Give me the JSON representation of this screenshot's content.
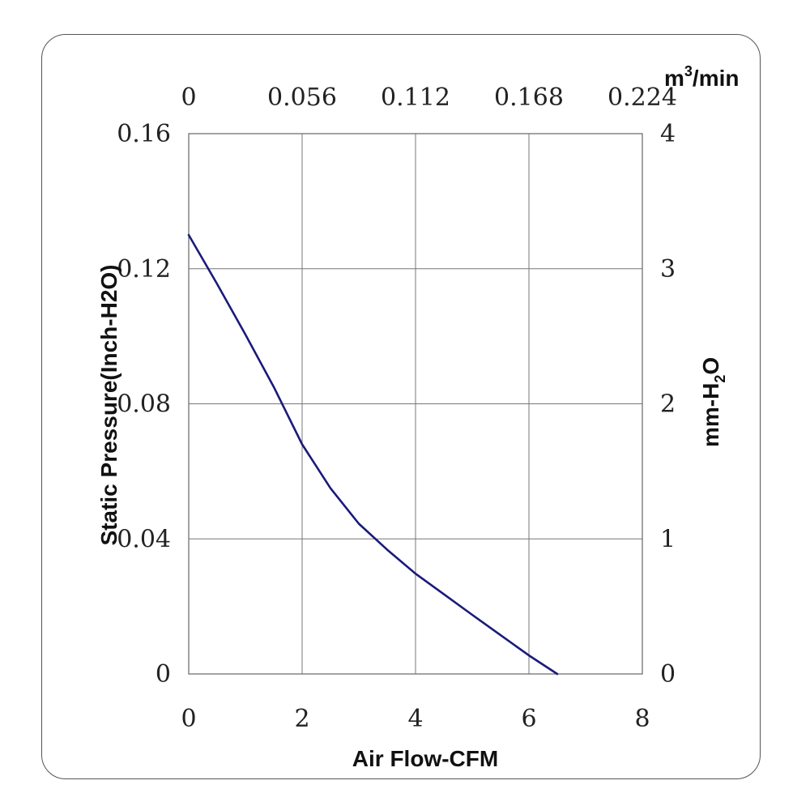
{
  "chart_data": {
    "type": "line",
    "xlabel": "Air Flow-CFM",
    "ylabel": "Static Pressure(Inch-H2O)",
    "x2label": "m3/min",
    "x2label_base": "m",
    "x2label_sup": "3",
    "x2label_rest": "/min",
    "y2label": "mm-H2O",
    "y2label_base": "mm-H",
    "y2label_sub": "2",
    "y2label_rest": "O",
    "xlim": [
      0,
      8
    ],
    "ylim": [
      0,
      0.16
    ],
    "x2lim": [
      0,
      0.224
    ],
    "y2lim": [
      0,
      4
    ],
    "x_ticks": [
      0,
      2,
      4,
      6,
      8
    ],
    "x_tick_labels": [
      "0",
      "2",
      "4",
      "6",
      "8"
    ],
    "y_ticks": [
      0,
      0.04,
      0.08,
      0.12,
      0.16
    ],
    "y_tick_labels": [
      "0",
      "0.04",
      "0.08",
      "0.12",
      "0.16"
    ],
    "x2_ticks": [
      0,
      0.056,
      0.112,
      0.168,
      0.224
    ],
    "x2_tick_labels": [
      "0",
      "0.056",
      "0.112",
      "0.168",
      "0.224"
    ],
    "y2_ticks": [
      0,
      1,
      2,
      3,
      4
    ],
    "y2_tick_labels": [
      "0",
      "1",
      "2",
      "3",
      "4"
    ],
    "grid": true,
    "line_color": "#1a1a7a",
    "series": [
      {
        "x": [
          0,
          0.5,
          1.0,
          1.5,
          2.0,
          2.5,
          3.0,
          3.5,
          4.0,
          4.5,
          5.0,
          5.5,
          6.0,
          6.5
        ],
        "y": [
          0.13,
          0.1155,
          0.1005,
          0.085,
          0.068,
          0.055,
          0.0445,
          0.0368,
          0.0297,
          0.0236,
          0.0175,
          0.0115,
          0.0055,
          0.0
        ]
      }
    ]
  }
}
